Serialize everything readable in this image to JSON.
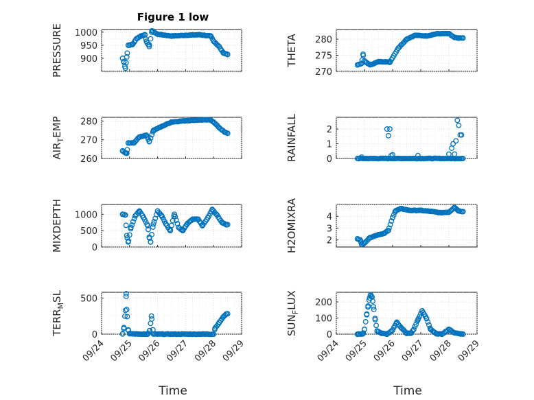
{
  "figure": {
    "title": "Figure 1 low",
    "xlabel": "Time"
  },
  "colors": {
    "marker": "#0072bd",
    "axis": "#262626",
    "grid": "#dcdcdc"
  },
  "chart_data": [
    {
      "type": "scatter",
      "ylabel": "PRESSURE",
      "xlim": [
        "09/24",
        "09/29"
      ],
      "ylim": [
        850,
        1010
      ],
      "yticks": [
        900,
        950,
        1000
      ],
      "x_day_start": 24.75,
      "x_day_end": 28.5,
      "key": [
        [
          24.75,
          900
        ],
        [
          24.8,
          885
        ],
        [
          24.85,
          862
        ],
        [
          24.9,
          905
        ],
        [
          24.95,
          950
        ],
        [
          25.1,
          952
        ],
        [
          25.25,
          975
        ],
        [
          25.4,
          985
        ],
        [
          25.55,
          990
        ],
        [
          25.6,
          965
        ],
        [
          25.7,
          945
        ],
        [
          25.8,
          1005
        ],
        [
          26.0,
          992
        ],
        [
          26.5,
          985
        ],
        [
          27.0,
          988
        ],
        [
          27.5,
          990
        ],
        [
          27.9,
          985
        ],
        [
          28.0,
          965
        ],
        [
          28.2,
          945
        ],
        [
          28.35,
          920
        ],
        [
          28.5,
          915
        ]
      ]
    },
    {
      "type": "scatter",
      "ylabel": "THETA",
      "xlim": [
        "09/24",
        "09/29"
      ],
      "ylim": [
        270,
        283
      ],
      "yticks": [
        270,
        275,
        280
      ],
      "x_day_start": 24.75,
      "x_day_end": 28.5,
      "key": [
        [
          24.75,
          272
        ],
        [
          24.9,
          272.5
        ],
        [
          24.95,
          275.3
        ],
        [
          25.0,
          273.2
        ],
        [
          25.2,
          272
        ],
        [
          25.5,
          273
        ],
        [
          25.75,
          273
        ],
        [
          25.9,
          272.8
        ],
        [
          26.2,
          277.2
        ],
        [
          26.5,
          280
        ],
        [
          26.8,
          281.2
        ],
        [
          27.2,
          281
        ],
        [
          27.6,
          281.7
        ],
        [
          28.0,
          281.7
        ],
        [
          28.2,
          280.5
        ],
        [
          28.35,
          280.3
        ],
        [
          28.5,
          280.4
        ]
      ]
    },
    {
      "type": "scatter",
      "ylabel": "AIR_TEMP",
      "xlim": [
        "09/24",
        "09/29"
      ],
      "ylim": [
        260,
        282
      ],
      "yticks": [
        260,
        270,
        280
      ],
      "x_day_start": 24.75,
      "x_day_end": 28.5,
      "key": [
        [
          24.75,
          264
        ],
        [
          24.85,
          263
        ],
        [
          24.9,
          262.8
        ],
        [
          24.95,
          268.3
        ],
        [
          25.15,
          268.3
        ],
        [
          25.35,
          271.5
        ],
        [
          25.6,
          272.5
        ],
        [
          25.7,
          269
        ],
        [
          25.85,
          275
        ],
        [
          26.1,
          276.8
        ],
        [
          26.5,
          279.5
        ],
        [
          27.0,
          280.2
        ],
        [
          27.5,
          280.6
        ],
        [
          27.9,
          280.6
        ],
        [
          28.0,
          279.5
        ],
        [
          28.2,
          276.5
        ],
        [
          28.4,
          274
        ],
        [
          28.5,
          273.5
        ]
      ]
    },
    {
      "type": "scatter",
      "ylabel": "RAINFALL",
      "xlim": [
        "09/24",
        "09/29"
      ],
      "ylim": [
        0,
        2.8
      ],
      "yticks": [
        0,
        1,
        2
      ],
      "x_day_start": 24.75,
      "x_day_end": 28.5,
      "note": "near-zero baseline with spikes",
      "key": [
        [
          24.9,
          0.1
        ],
        [
          25.8,
          2.0
        ],
        [
          25.85,
          1.55
        ],
        [
          25.9,
          2.0
        ],
        [
          25.95,
          0.2
        ],
        [
          26.0,
          0.25
        ],
        [
          26.9,
          0.2
        ],
        [
          28.0,
          0.3
        ],
        [
          28.1,
          0.7
        ],
        [
          28.15,
          1.0
        ],
        [
          28.2,
          0.3
        ],
        [
          28.25,
          1.2
        ],
        [
          28.3,
          2.6
        ],
        [
          28.35,
          2.25
        ],
        [
          28.4,
          1.6
        ],
        [
          28.45,
          1.6
        ]
      ]
    },
    {
      "type": "scatter",
      "ylabel": "MIXDEPTH",
      "xlim": [
        "09/24",
        "09/29"
      ],
      "ylim": [
        0,
        1300
      ],
      "yticks": [
        0,
        500,
        1000
      ],
      "x_day_start": 24.75,
      "x_day_end": 28.5,
      "key": [
        [
          24.75,
          1000
        ],
        [
          24.85,
          980
        ],
        [
          24.9,
          350
        ],
        [
          24.95,
          150
        ],
        [
          25.05,
          600
        ],
        [
          25.2,
          950
        ],
        [
          25.35,
          1100
        ],
        [
          25.5,
          900
        ],
        [
          25.65,
          650
        ],
        [
          25.7,
          300
        ],
        [
          25.75,
          150
        ],
        [
          25.85,
          700
        ],
        [
          26.0,
          1100
        ],
        [
          26.15,
          950
        ],
        [
          26.3,
          700
        ],
        [
          26.45,
          500
        ],
        [
          26.6,
          1000
        ],
        [
          26.75,
          600
        ],
        [
          26.9,
          500
        ],
        [
          27.05,
          700
        ],
        [
          27.25,
          850
        ],
        [
          27.45,
          850
        ],
        [
          27.6,
          650
        ],
        [
          27.8,
          900
        ],
        [
          27.95,
          1150
        ],
        [
          28.1,
          1000
        ],
        [
          28.3,
          750
        ],
        [
          28.45,
          680
        ]
      ]
    },
    {
      "type": "scatter",
      "ylabel": "H2OMIXRA",
      "xlim": [
        "09/24",
        "09/29"
      ],
      "ylim": [
        1.4,
        5.0
      ],
      "yticks": [
        2,
        3,
        4
      ],
      "x_day_start": 24.75,
      "x_day_end": 28.5,
      "key": [
        [
          24.75,
          2.1
        ],
        [
          24.85,
          2.0
        ],
        [
          24.9,
          1.6
        ],
        [
          25.0,
          1.75
        ],
        [
          25.2,
          2.2
        ],
        [
          25.5,
          2.45
        ],
        [
          25.7,
          2.55
        ],
        [
          25.85,
          2.8
        ],
        [
          26.0,
          3.9
        ],
        [
          26.1,
          4.45
        ],
        [
          26.3,
          4.65
        ],
        [
          26.6,
          4.5
        ],
        [
          27.0,
          4.5
        ],
        [
          27.4,
          4.4
        ],
        [
          27.7,
          4.3
        ],
        [
          28.0,
          4.35
        ],
        [
          28.2,
          4.75
        ],
        [
          28.35,
          4.45
        ],
        [
          28.5,
          4.4
        ]
      ]
    },
    {
      "type": "scatter",
      "ylabel": "TERR_MSL",
      "xlim": [
        "09/24",
        "09/29"
      ],
      "ylim": [
        0,
        580
      ],
      "yticks": [
        0,
        500
      ],
      "x_day_start": 24.75,
      "x_day_end": 28.5,
      "key": [
        [
          24.75,
          5
        ],
        [
          24.8,
          90
        ],
        [
          24.85,
          330
        ],
        [
          24.88,
          560
        ],
        [
          24.9,
          340
        ],
        [
          24.95,
          60
        ],
        [
          25.0,
          5
        ],
        [
          25.5,
          0
        ],
        [
          25.65,
          0
        ],
        [
          25.72,
          50
        ],
        [
          25.78,
          250
        ],
        [
          25.85,
          0
        ],
        [
          26.5,
          0
        ],
        [
          27.5,
          0
        ],
        [
          28.0,
          0
        ],
        [
          28.05,
          80
        ],
        [
          28.2,
          160
        ],
        [
          28.35,
          240
        ],
        [
          28.45,
          280
        ]
      ]
    },
    {
      "type": "scatter",
      "ylabel": "SUN_FLUX",
      "xlim": [
        "09/24",
        "09/29"
      ],
      "ylim": [
        0,
        260
      ],
      "yticks": [
        0,
        100,
        200
      ],
      "x_day_start": 24.75,
      "x_day_end": 28.5,
      "key": [
        [
          24.75,
          0
        ],
        [
          24.95,
          2
        ],
        [
          25.0,
          30
        ],
        [
          25.08,
          120
        ],
        [
          25.13,
          175
        ],
        [
          25.18,
          225
        ],
        [
          25.22,
          245
        ],
        [
          25.27,
          230
        ],
        [
          25.32,
          170
        ],
        [
          25.38,
          90
        ],
        [
          25.45,
          20
        ],
        [
          25.6,
          5
        ],
        [
          25.8,
          0
        ],
        [
          26.0,
          25
        ],
        [
          26.15,
          75
        ],
        [
          26.3,
          40
        ],
        [
          26.5,
          5
        ],
        [
          26.65,
          5
        ],
        [
          26.75,
          30
        ],
        [
          26.9,
          90
        ],
        [
          27.05,
          145
        ],
        [
          27.2,
          100
        ],
        [
          27.35,
          30
        ],
        [
          27.55,
          2
        ],
        [
          27.75,
          0
        ],
        [
          28.0,
          30
        ],
        [
          28.2,
          8
        ],
        [
          28.4,
          2
        ],
        [
          28.5,
          0
        ]
      ]
    }
  ]
}
